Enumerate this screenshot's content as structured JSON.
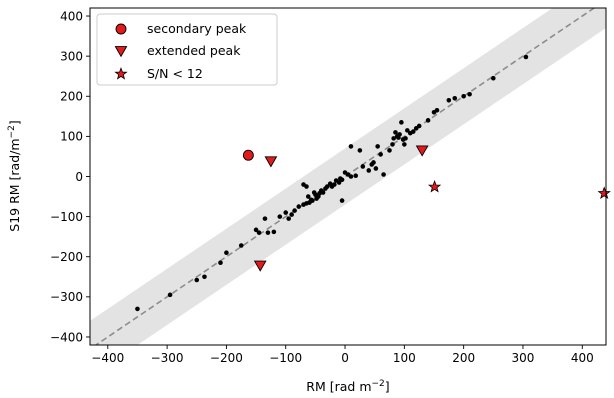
{
  "chart_data": {
    "type": "scatter",
    "xlabel_main": "RM [rad m",
    "xlabel_sup": "−2",
    "xlabel_end": "]",
    "ylabel_main": "S19 RM [rad/m",
    "ylabel_sup": "−2",
    "ylabel_end": "]",
    "xlim": [
      -430,
      440
    ],
    "ylim": [
      -420,
      420
    ],
    "xticks": [
      -400,
      -300,
      -200,
      -100,
      0,
      100,
      200,
      300,
      400
    ],
    "yticks": [
      -400,
      -300,
      -200,
      -100,
      0,
      100,
      200,
      300,
      400
    ],
    "xtick_labels": [
      "−400",
      "−300",
      "−200",
      "−100",
      "0",
      "100",
      "200",
      "300",
      "400"
    ],
    "ytick_labels": [
      "−400",
      "−300",
      "−200",
      "−100",
      "0",
      "100",
      "200",
      "300",
      "400"
    ],
    "one_to_one_line": true,
    "band_halfwidth": 70,
    "grid": false,
    "legend_position": "top-left",
    "series": [
      {
        "name": "",
        "marker": "dot",
        "color": "#000000",
        "points": [
          [
            -350,
            -330
          ],
          [
            -295,
            -295
          ],
          [
            -250,
            -258
          ],
          [
            -237,
            -250
          ],
          [
            -210,
            -215
          ],
          [
            -200,
            -190
          ],
          [
            -175,
            -172
          ],
          [
            -150,
            -133
          ],
          [
            -145,
            -140
          ],
          [
            -135,
            -105
          ],
          [
            -130,
            -140
          ],
          [
            -120,
            -138
          ],
          [
            -110,
            -100
          ],
          [
            -100,
            -90
          ],
          [
            -95,
            -105
          ],
          [
            -90,
            -95
          ],
          [
            -85,
            -85
          ],
          [
            -78,
            -75
          ],
          [
            -70,
            -70
          ],
          [
            -65,
            -67
          ],
          [
            -62,
            -50
          ],
          [
            -60,
            -65
          ],
          [
            -57,
            -58
          ],
          [
            -55,
            -60
          ],
          [
            -52,
            -40
          ],
          [
            -50,
            -45
          ],
          [
            -48,
            -55
          ],
          [
            -45,
            -50
          ],
          [
            -43,
            -42
          ],
          [
            -40,
            -35
          ],
          [
            -37,
            -40
          ],
          [
            -33,
            -30
          ],
          [
            -30,
            -25
          ],
          [
            -25,
            -18
          ],
          [
            -22,
            -25
          ],
          [
            -18,
            -20
          ],
          [
            -15,
            -10
          ],
          [
            -10,
            -15
          ],
          [
            -8,
            -5
          ],
          [
            -5,
            -8
          ],
          [
            -5,
            -60
          ],
          [
            0,
            10
          ],
          [
            5,
            5
          ],
          [
            10,
            0
          ],
          [
            18,
            2
          ],
          [
            25,
            65
          ],
          [
            30,
            25
          ],
          [
            40,
            15
          ],
          [
            45,
            30
          ],
          [
            48,
            35
          ],
          [
            52,
            20
          ],
          [
            55,
            75
          ],
          [
            60,
            55
          ],
          [
            65,
            5
          ],
          [
            75,
            65
          ],
          [
            80,
            80
          ],
          [
            82,
            95
          ],
          [
            85,
            110
          ],
          [
            88,
            100
          ],
          [
            90,
            97
          ],
          [
            92,
            105
          ],
          [
            95,
            135
          ],
          [
            98,
            92
          ],
          [
            100,
            80
          ],
          [
            102,
            95
          ],
          [
            105,
            115
          ],
          [
            110,
            108
          ],
          [
            115,
            112
          ],
          [
            120,
            120
          ],
          [
            125,
            126
          ],
          [
            140,
            140
          ],
          [
            150,
            160
          ],
          [
            155,
            165
          ],
          [
            175,
            190
          ],
          [
            185,
            195
          ],
          [
            200,
            200
          ],
          [
            210,
            205
          ],
          [
            250,
            245
          ],
          [
            305,
            298
          ],
          [
            -65,
            -25
          ],
          [
            -70,
            -20
          ],
          [
            10,
            75
          ]
        ]
      },
      {
        "name": "secondary peak",
        "marker": "circle",
        "color": "#e31a1c",
        "points": [
          [
            -163,
            53
          ]
        ]
      },
      {
        "name": "extended peak",
        "marker": "triangle-down",
        "color": "#e31a1c",
        "points": [
          [
            -125,
            38
          ],
          [
            130,
            65
          ],
          [
            -143,
            -222
          ]
        ]
      },
      {
        "name": "S/N < 12",
        "marker": "star",
        "color": "#e31a1c",
        "points": [
          [
            151,
            -26
          ],
          [
            437,
            -42
          ]
        ]
      }
    ]
  }
}
